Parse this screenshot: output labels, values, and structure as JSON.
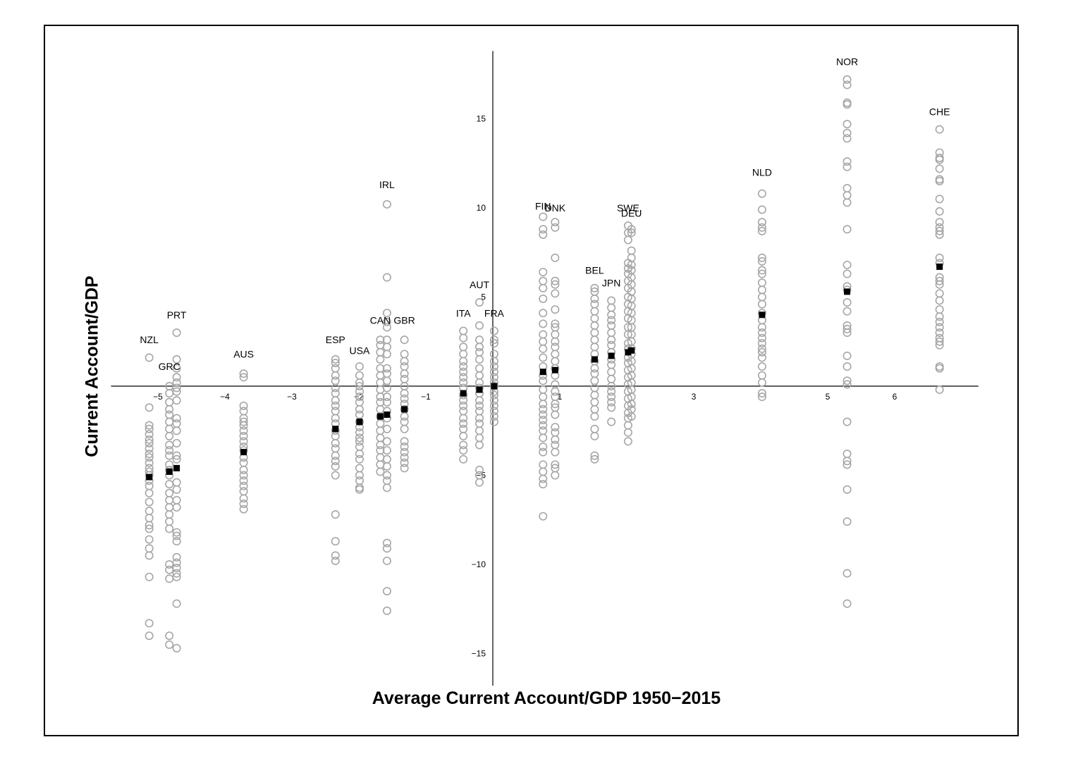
{
  "chart_data": {
    "type": "scatter",
    "xlabel": "Average Current Account/GDP 1950−2015",
    "ylabel": "Current Account/GDP",
    "xlim": [
      -5.7,
      7.25
    ],
    "ylim": [
      -16.8,
      18.8
    ],
    "x_ticks": [
      -5,
      -4,
      -3,
      -2,
      -1,
      1,
      3,
      5,
      6
    ],
    "x_tick_labels": [
      "−5",
      "−4",
      "−3",
      "−2",
      "−1",
      "1",
      "3",
      "5",
      "6"
    ],
    "y_ticks": [
      -15,
      -10,
      -5,
      5,
      10,
      15
    ],
    "y_tick_labels": [
      "−15",
      "−10",
      "−5",
      "5",
      "10",
      "15"
    ],
    "grid": false,
    "colors": {
      "observation": "#a6a6a6",
      "mean": "#000000",
      "axis": "#000000"
    },
    "marker_styles": {
      "observation": "hollow-circle",
      "mean": "filled-square"
    },
    "countries": [
      {
        "code": "NZL",
        "x": -5.13,
        "label_y": 2.6,
        "mean": -5.1,
        "values": [
          1.6,
          -1.2,
          -2.2,
          -2.4,
          -2.7,
          -3.0,
          -3.2,
          -3.5,
          -3.8,
          -4.0,
          -4.3,
          -4.6,
          -4.8,
          -5.0,
          -5.3,
          -5.6,
          -6.0,
          -6.5,
          -7.0,
          -7.4,
          -7.8,
          -8.0,
          -8.6,
          -9.1,
          -9.5,
          -10.7,
          -13.3,
          -14.0
        ]
      },
      {
        "code": "GRC",
        "x": -4.83,
        "label_y": 1.1,
        "mean": -4.8,
        "values": [
          0.0,
          -0.4,
          -0.9,
          -1.3,
          -1.6,
          -2.0,
          -2.4,
          -2.8,
          -3.3,
          -3.6,
          -3.9,
          -4.4,
          -4.7,
          -5.0,
          -5.5,
          -6.0,
          -6.4,
          -6.8,
          -7.2,
          -7.6,
          -8.0,
          -10.0,
          -10.3,
          -10.8,
          -14.0,
          -14.5
        ]
      },
      {
        "code": "PRT",
        "x": -4.72,
        "label_y": 4.0,
        "mean": -4.6,
        "values": [
          3.0,
          1.5,
          1.0,
          0.5,
          0.2,
          -0.1,
          -0.3,
          -0.8,
          -1.8,
          -2.1,
          -2.5,
          -3.2,
          -3.9,
          -4.1,
          -5.4,
          -5.8,
          -6.4,
          -6.8,
          -8.2,
          -8.4,
          -8.7,
          -9.6,
          -9.9,
          -10.2,
          -10.5,
          -10.7,
          -12.2,
          -14.7
        ]
      },
      {
        "code": "AUS",
        "x": -3.72,
        "label_y": 1.8,
        "mean": -3.7,
        "values": [
          0.7,
          0.5,
          -1.1,
          -1.4,
          -1.8,
          -2.0,
          -2.2,
          -2.5,
          -2.8,
          -3.1,
          -3.4,
          -3.6,
          -4.0,
          -4.3,
          -4.7,
          -5.0,
          -5.3,
          -5.6,
          -5.9,
          -6.3,
          -6.6,
          -6.9
        ]
      },
      {
        "code": "ESP",
        "x": -2.35,
        "label_y": 2.6,
        "mean": -2.4,
        "values": [
          1.5,
          1.3,
          1.0,
          0.6,
          0.3,
          -0.1,
          -0.4,
          -0.8,
          -1.1,
          -1.4,
          -1.8,
          -2.1,
          -2.5,
          -2.8,
          -3.2,
          -3.5,
          -3.9,
          -4.2,
          -4.5,
          -5.0,
          -7.2,
          -8.7,
          -9.5,
          -9.8
        ]
      },
      {
        "code": "USA",
        "x": -1.99,
        "label_y": 2.0,
        "mean": -2.0,
        "values": [
          1.1,
          0.6,
          0.2,
          0.0,
          -0.3,
          -0.6,
          -0.9,
          -1.3,
          -1.6,
          -2.0,
          -2.3,
          -2.6,
          -2.9,
          -3.1,
          -3.4,
          -3.8,
          -4.1,
          -4.6,
          -5.0,
          -5.3,
          -5.7,
          -5.8
        ]
      },
      {
        "code": "CAN",
        "x": -1.68,
        "label_y": 3.7,
        "mean": -1.7,
        "values": [
          2.6,
          2.3,
          1.9,
          1.5,
          1.0,
          0.6,
          0.2,
          -0.2,
          -0.6,
          -0.9,
          -1.3,
          -1.7,
          -2.1,
          -2.5,
          -2.9,
          -3.3,
          -3.6,
          -4.0,
          -4.4,
          -4.8
        ]
      },
      {
        "code": "IRL",
        "x": -1.58,
        "label_y": 11.3,
        "mean": -1.6,
        "values": [
          10.2,
          6.1,
          4.1,
          3.6,
          3.3,
          2.6,
          2.2,
          1.8,
          1.0,
          0.7,
          0.3,
          -0.1,
          -0.6,
          -0.9,
          -1.4,
          -1.8,
          -2.4,
          -3.1,
          -3.6,
          -4.1,
          -4.5,
          -5.0,
          -5.3,
          -5.7,
          -8.8,
          -9.1,
          -9.8,
          -11.5,
          -12.6
        ]
      },
      {
        "code": "GBR",
        "x": -1.32,
        "label_y": 3.7,
        "mean": -1.3,
        "values": [
          2.6,
          1.8,
          1.4,
          1.1,
          0.7,
          0.4,
          0.0,
          -0.4,
          -0.7,
          -1.0,
          -1.3,
          -1.7,
          -2.0,
          -2.4,
          -3.1,
          -3.4,
          -3.7,
          -4.0,
          -4.3,
          -4.6
        ]
      },
      {
        "code": "ITA",
        "x": -0.44,
        "label_y": 4.1,
        "mean": -0.4,
        "values": [
          3.1,
          2.7,
          2.2,
          1.8,
          1.4,
          1.1,
          0.8,
          0.5,
          0.2,
          -0.1,
          -0.5,
          -0.8,
          -1.1,
          -1.4,
          -1.8,
          -2.1,
          -2.4,
          -2.8,
          -3.3,
          -3.6,
          -4.1
        ]
      },
      {
        "code": "AUT",
        "x": -0.2,
        "label_y": 5.7,
        "mean": -0.2,
        "values": [
          4.7,
          3.4,
          2.6,
          2.2,
          1.9,
          1.5,
          1.0,
          0.6,
          0.2,
          -0.1,
          -0.4,
          -0.8,
          -1.1,
          -1.4,
          -1.8,
          -2.1,
          -2.5,
          -2.9,
          -3.3,
          -4.7,
          -5.0,
          -5.4
        ]
      },
      {
        "code": "FRA",
        "x": 0.02,
        "label_y": 4.1,
        "mean": 0.0,
        "values": [
          3.1,
          2.6,
          2.4,
          1.8,
          1.4,
          1.1,
          0.8,
          0.5,
          0.2,
          0.0,
          -0.3,
          -0.5,
          -0.8,
          -1.1,
          -1.4,
          -1.7,
          -2.0
        ]
      },
      {
        "code": "FIN",
        "x": 0.75,
        "label_y": 10.1,
        "mean": 0.8,
        "values": [
          9.5,
          8.8,
          8.5,
          6.4,
          5.9,
          5.5,
          4.9,
          4.1,
          3.5,
          2.9,
          2.5,
          2.1,
          1.6,
          1.1,
          0.6,
          0.3,
          -0.2,
          -0.6,
          -1.0,
          -1.3,
          -1.6,
          -1.9,
          -2.2,
          -2.5,
          -2.9,
          -3.4,
          -3.7,
          -4.4,
          -4.8,
          -5.2,
          -5.5,
          -7.3
        ]
      },
      {
        "code": "DNK",
        "x": 0.93,
        "label_y": 10.0,
        "mean": 0.9,
        "values": [
          9.2,
          8.9,
          7.2,
          5.9,
          5.7,
          5.2,
          4.3,
          3.5,
          3.3,
          2.9,
          2.5,
          2.2,
          1.8,
          1.4,
          1.0,
          0.6,
          0.1,
          -0.3,
          -0.6,
          -1.0,
          -1.2,
          -1.6,
          -2.3,
          -2.6,
          -3.0,
          -3.3,
          -3.7,
          -4.4,
          -4.6,
          -5.0
        ]
      },
      {
        "code": "BEL",
        "x": 1.52,
        "label_y": 6.5,
        "mean": 1.5,
        "values": [
          5.5,
          5.3,
          4.9,
          4.6,
          4.2,
          3.8,
          3.4,
          3.0,
          2.6,
          2.2,
          1.8,
          1.4,
          1.0,
          0.7,
          0.3,
          -0.1,
          -0.5,
          -0.9,
          -1.3,
          -1.7,
          -2.4,
          -2.8,
          -3.9,
          -4.1
        ]
      },
      {
        "code": "JPN",
        "x": 1.77,
        "label_y": 5.8,
        "mean": 1.7,
        "values": [
          4.8,
          4.4,
          4.0,
          3.7,
          3.4,
          3.0,
          2.6,
          2.3,
          1.9,
          1.5,
          1.2,
          0.8,
          0.4,
          0.0,
          -0.3,
          -0.6,
          -0.9,
          -1.2,
          -2.0
        ]
      },
      {
        "code": "SWE",
        "x": 2.02,
        "label_y": 10.0,
        "mean": 1.9,
        "values": [
          9.0,
          8.6,
          8.2,
          6.9,
          6.6,
          6.3,
          5.9,
          5.5,
          5.0,
          4.6,
          4.2,
          3.8,
          3.3,
          2.9,
          2.4,
          2.1,
          1.6,
          1.3,
          0.9,
          0.5,
          0.1,
          -0.3,
          -0.7,
          -1.1,
          -1.5,
          -1.8,
          -2.2,
          -2.6,
          -3.1
        ]
      },
      {
        "code": "DEU",
        "x": 2.07,
        "label_y": 9.7,
        "mean": 2.0,
        "values": [
          8.8,
          8.6,
          7.6,
          7.2,
          6.8,
          6.5,
          6.1,
          5.7,
          5.3,
          4.9,
          4.5,
          4.1,
          3.7,
          3.3,
          2.9,
          2.5,
          2.1,
          1.8,
          1.4,
          1.0,
          0.6,
          0.2,
          -0.2,
          -0.6,
          -1.0,
          -1.3,
          -1.7
        ]
      },
      {
        "code": "NLD",
        "x": 4.02,
        "label_y": 12.0,
        "mean": 4.0,
        "values": [
          10.8,
          9.9,
          9.2,
          8.9,
          8.7,
          7.2,
          7.0,
          6.5,
          6.3,
          5.8,
          5.4,
          5.0,
          4.6,
          4.1,
          3.7,
          3.3,
          3.0,
          2.7,
          2.4,
          2.1,
          1.9,
          1.6,
          1.1,
          0.6,
          0.2,
          -0.4,
          -0.6
        ]
      },
      {
        "code": "NOR",
        "x": 5.29,
        "label_y": 18.2,
        "mean": 5.3,
        "values": [
          17.2,
          16.9,
          15.9,
          15.8,
          14.7,
          14.2,
          13.9,
          12.6,
          12.3,
          11.1,
          10.7,
          10.3,
          8.8,
          6.8,
          6.3,
          5.6,
          5.4,
          4.7,
          4.2,
          3.4,
          3.2,
          3.0,
          1.7,
          1.1,
          0.3,
          0.1,
          -2.0,
          -3.8,
          -4.2,
          -4.4,
          -5.8,
          -7.6,
          -10.5,
          -12.2
        ]
      },
      {
        "code": "CHE",
        "x": 6.67,
        "label_y": 15.4,
        "mean": 6.7,
        "values": [
          14.4,
          13.1,
          12.8,
          12.7,
          12.2,
          11.6,
          11.5,
          10.5,
          9.8,
          9.2,
          8.9,
          8.7,
          8.5,
          7.2,
          6.9,
          6.1,
          5.9,
          5.7,
          5.2,
          4.8,
          4.3,
          3.9,
          3.6,
          3.3,
          3.0,
          2.7,
          2.5,
          2.3,
          1.1,
          1.0,
          -0.2
        ]
      }
    ]
  }
}
